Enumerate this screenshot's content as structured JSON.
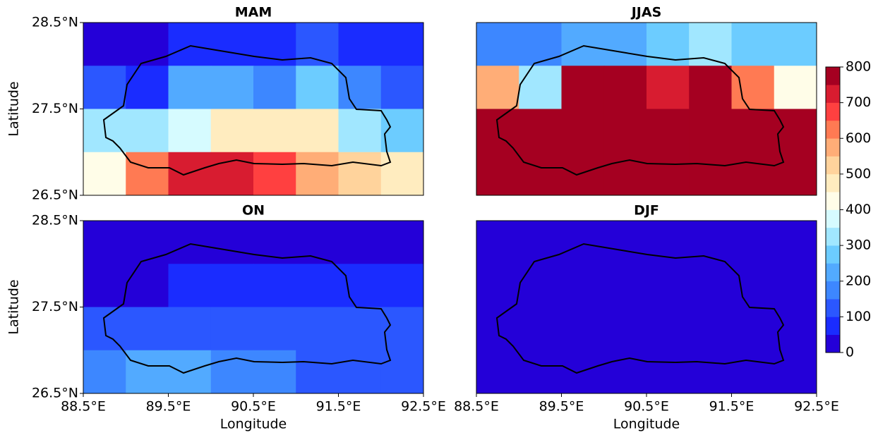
{
  "chart_data": {
    "type": "heatmap",
    "x_label": "Longitude",
    "y_label": "Latitude",
    "xlim": [
      88.5,
      92.5
    ],
    "ylim": [
      26.5,
      28.5
    ],
    "xticks": [
      {
        "value": 88.5,
        "label": "88.5°E"
      },
      {
        "value": 89.5,
        "label": "89.5°E"
      },
      {
        "value": 90.5,
        "label": "90.5°E"
      },
      {
        "value": 91.5,
        "label": "91.5°E"
      },
      {
        "value": 92.5,
        "label": "92.5°E"
      }
    ],
    "yticks": [
      {
        "value": 26.5,
        "label": "26.5°N"
      },
      {
        "value": 27.5,
        "label": "27.5°N"
      },
      {
        "value": 28.5,
        "label": "28.5°N"
      }
    ],
    "x": [
      88.75,
      89.25,
      89.75,
      90.25,
      90.75,
      91.25,
      91.75,
      92.25
    ],
    "y": [
      28.25,
      27.75,
      27.25,
      26.75
    ],
    "panels": [
      {
        "title": "MAM",
        "values": [
          [
            25,
            25,
            75,
            75,
            75,
            125,
            75,
            75
          ],
          [
            125,
            75,
            225,
            225,
            175,
            275,
            175,
            125
          ],
          [
            325,
            325,
            375,
            475,
            475,
            475,
            325,
            275
          ],
          [
            425,
            625,
            725,
            725,
            675,
            575,
            525,
            475
          ]
        ]
      },
      {
        "title": "JJAS",
        "values": [
          [
            175,
            175,
            225,
            225,
            275,
            325,
            275,
            275
          ],
          [
            575,
            325,
            775,
            775,
            725,
            775,
            625,
            425
          ],
          [
            775,
            775,
            775,
            775,
            775,
            775,
            775,
            775
          ],
          [
            775,
            775,
            775,
            775,
            775,
            775,
            775,
            775
          ]
        ]
      },
      {
        "title": "ON",
        "values": [
          [
            25,
            25,
            25,
            25,
            25,
            25,
            25,
            25
          ],
          [
            25,
            25,
            75,
            75,
            75,
            75,
            75,
            75
          ],
          [
            125,
            125,
            125,
            125,
            125,
            125,
            125,
            125
          ],
          [
            175,
            225,
            225,
            175,
            175,
            125,
            125,
            125
          ]
        ]
      },
      {
        "title": "DJF",
        "values": [
          [
            25,
            25,
            25,
            25,
            25,
            25,
            25,
            25
          ],
          [
            25,
            25,
            25,
            25,
            25,
            25,
            25,
            25
          ],
          [
            25,
            25,
            25,
            25,
            25,
            25,
            25,
            25
          ],
          [
            25,
            25,
            25,
            25,
            25,
            25,
            25,
            25
          ]
        ]
      }
    ],
    "colorbar": {
      "levels": [
        0,
        50,
        100,
        150,
        200,
        250,
        300,
        350,
        400,
        450,
        500,
        550,
        600,
        650,
        700,
        750,
        800
      ],
      "colors": [
        "#2400d8",
        "#1a2cff",
        "#2b57ff",
        "#3d87ff",
        "#52aaff",
        "#6cccff",
        "#a1e7ff",
        "#d6fbff",
        "#fffde8",
        "#ffecbf",
        "#ffd39c",
        "#ffad77",
        "#ff7a53",
        "#ff4040",
        "#d81c30",
        "#a50021"
      ],
      "ticks": [
        0,
        100,
        200,
        300,
        400,
        500,
        600,
        700,
        800
      ]
    }
  }
}
